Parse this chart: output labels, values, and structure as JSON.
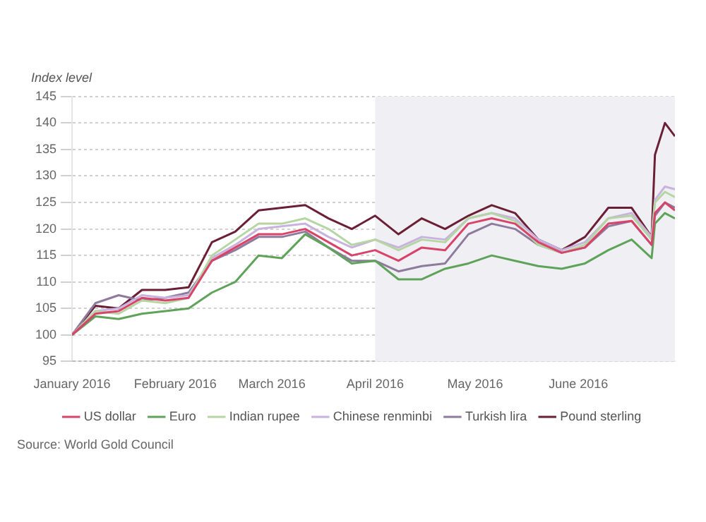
{
  "chart_data": {
    "type": "line",
    "ylabel": "Index level",
    "x": [
      "2016-01-01",
      "2016-01-08",
      "2016-01-15",
      "2016-01-22",
      "2016-01-29",
      "2016-02-05",
      "2016-02-12",
      "2016-02-19",
      "2016-02-26",
      "2016-03-04",
      "2016-03-11",
      "2016-03-18",
      "2016-03-25",
      "2016-04-01",
      "2016-04-08",
      "2016-04-15",
      "2016-04-22",
      "2016-04-29",
      "2016-05-06",
      "2016-05-13",
      "2016-05-20",
      "2016-05-27",
      "2016-06-03",
      "2016-06-10",
      "2016-06-17",
      "2016-06-23",
      "2016-06-24",
      "2016-06-27",
      "2016-06-30"
    ],
    "series": [
      {
        "name": "US dollar",
        "color": "#d8436a",
        "values": [
          100,
          104,
          104.5,
          107,
          106.5,
          107,
          114,
          116.5,
          119,
          119,
          120,
          117.5,
          115,
          116,
          114,
          116.5,
          116,
          121,
          122,
          121,
          117.5,
          115.5,
          116.5,
          121,
          121.5,
          117,
          123,
          125,
          123.5
        ]
      },
      {
        "name": "Euro",
        "color": "#5fa35a",
        "values": [
          100,
          103.5,
          103,
          104,
          104.5,
          105,
          108,
          110,
          115,
          114.5,
          119,
          116.5,
          113.5,
          114,
          110.5,
          110.5,
          112.5,
          113.5,
          115,
          114,
          113,
          112.5,
          113.5,
          116,
          118,
          114.5,
          121,
          123,
          122
        ]
      },
      {
        "name": "Indian rupee",
        "color": "#b5d6a3",
        "values": [
          100,
          104.5,
          104,
          106.5,
          106,
          107,
          115,
          118,
          121,
          121,
          122,
          120,
          117,
          118,
          116,
          118,
          117.5,
          122,
          123,
          121.5,
          117,
          115.5,
          117,
          122,
          122.5,
          118,
          125,
          127,
          126
        ]
      },
      {
        "name": "Chinese renminbi",
        "color": "#c9b3de",
        "values": [
          100,
          104.5,
          105,
          107.5,
          107,
          107.5,
          114.5,
          117,
          120,
          120.5,
          121,
          118.5,
          116.5,
          118,
          116.5,
          118.5,
          118,
          122,
          123,
          122,
          118,
          116,
          117.5,
          122,
          123,
          118.5,
          125.5,
          128,
          127.5
        ]
      },
      {
        "name": "Turkish lira",
        "color": "#8e7a9c",
        "values": [
          100,
          106,
          107.5,
          106.5,
          107,
          108,
          114,
          116,
          118.5,
          118.5,
          119.5,
          116.5,
          114,
          114,
          112,
          113,
          113.5,
          119,
          121,
          120,
          117,
          115.5,
          116.5,
          120.5,
          121.5,
          117,
          122.5,
          125,
          124
        ]
      },
      {
        "name": "Pound sterling",
        "color": "#6b1f35",
        "values": [
          100,
          105.5,
          105,
          108.5,
          108.5,
          109,
          117.5,
          119.5,
          123.5,
          124,
          124.5,
          122,
          120,
          122.5,
          119,
          122,
          120,
          122.5,
          124.5,
          123,
          118,
          116,
          118.5,
          124,
          124,
          118.5,
          134,
          140,
          137.5
        ]
      }
    ],
    "xlim": [
      "2016-01-01",
      "2016-06-30"
    ],
    "xticks": [
      {
        "value": "2016-01-01",
        "label": "January 2016"
      },
      {
        "value": "2016-02-01",
        "label": "February 2016"
      },
      {
        "value": "2016-03-01",
        "label": "March 2016"
      },
      {
        "value": "2016-04-01",
        "label": "April 2016"
      },
      {
        "value": "2016-05-01",
        "label": "May 2016"
      },
      {
        "value": "2016-06-01",
        "label": "June 2016"
      }
    ],
    "ylim": [
      95,
      145
    ],
    "yticks": [
      95,
      100,
      105,
      110,
      115,
      120,
      125,
      130,
      135,
      140,
      145
    ],
    "bands": [
      {
        "axis": "x",
        "from": "2016-04-01",
        "to": "2016-06-30",
        "color": "#f0f0f4"
      }
    ],
    "grid": "y",
    "legend": "bottom",
    "marker": "none",
    "line_style": "solid",
    "annotations": [
      "Source: World Gold Council"
    ]
  }
}
